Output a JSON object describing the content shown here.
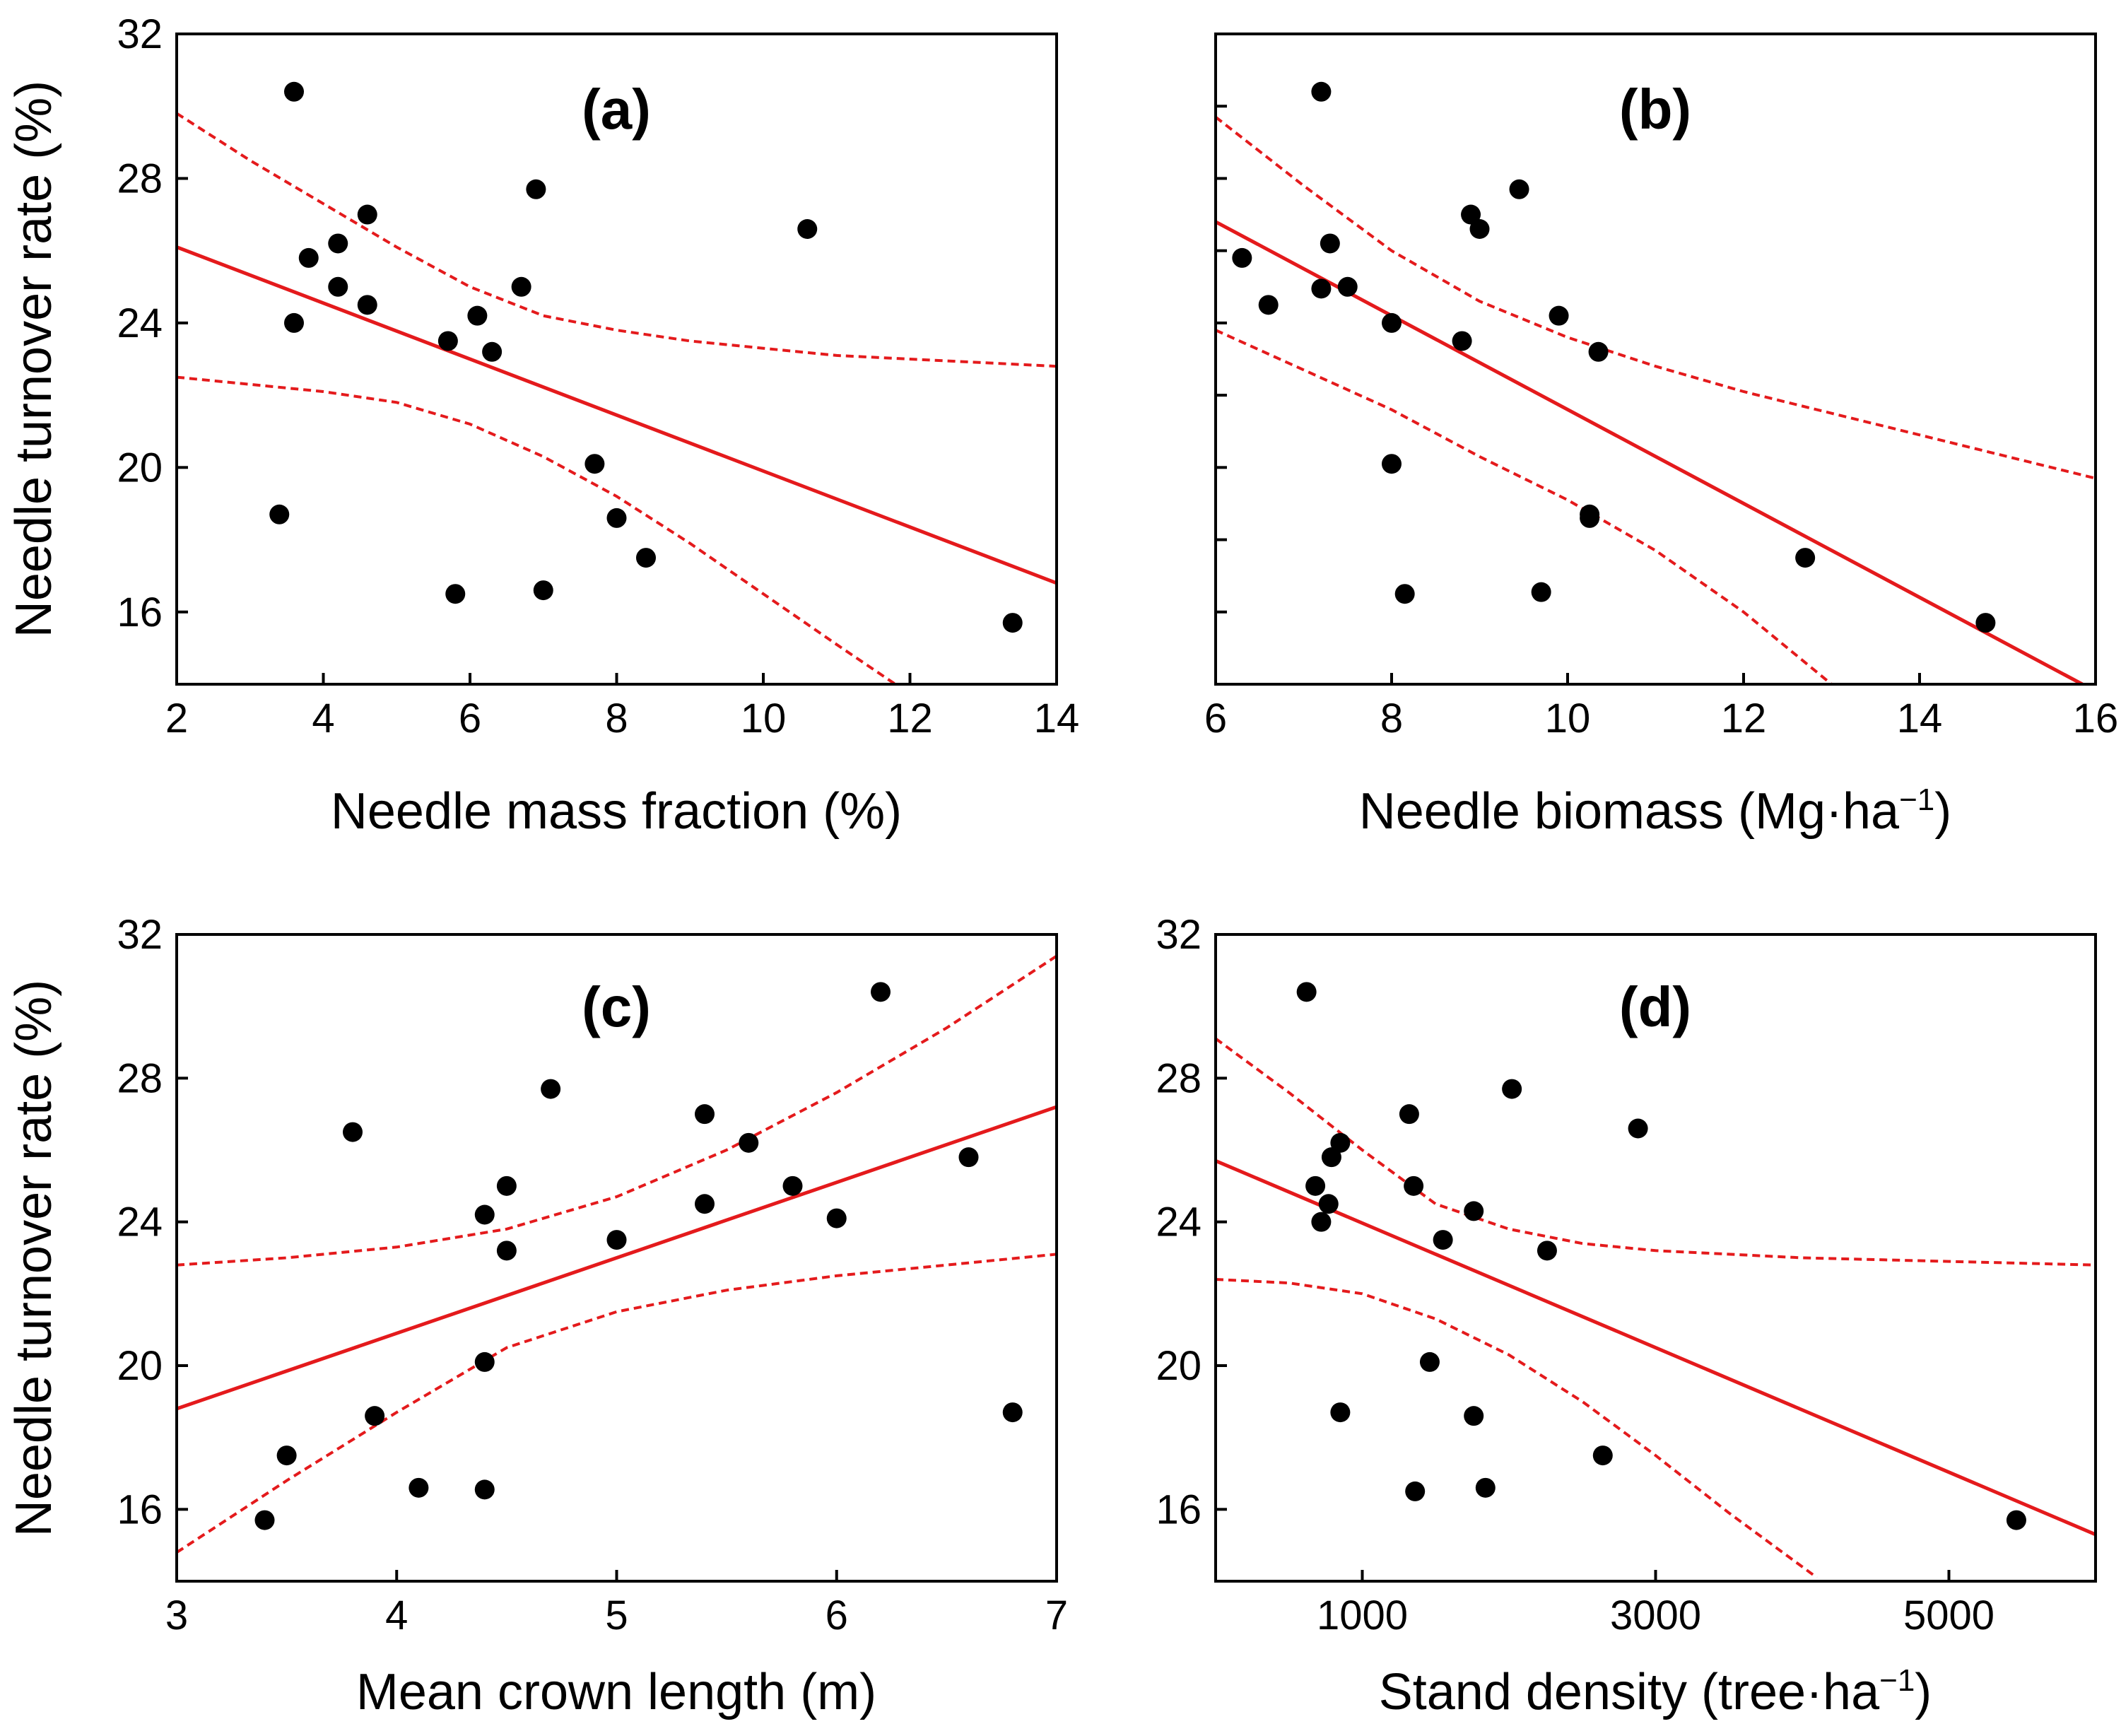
{
  "figure": {
    "accent_color": "#e41a1c",
    "point_color": "#000000"
  },
  "chart_data": [
    {
      "type": "scatter",
      "panel_label": "(a)",
      "xlabel": "Needle mass fraction (%)",
      "xlabel_sup": "",
      "xlabel_suffix": "",
      "ylabel": "Needle turnover rate (%)",
      "xlim": [
        2,
        14
      ],
      "ylim": [
        14,
        32
      ],
      "xticks": [
        2,
        4,
        6,
        8,
        10,
        12,
        14
      ],
      "xtick_labels": [
        "2",
        "4",
        "6",
        "8",
        "10",
        "12",
        "14"
      ],
      "yticks": [
        16,
        20,
        24,
        28,
        32
      ],
      "ytick_labels": [
        "16",
        "20",
        "24",
        "28",
        "32"
      ],
      "grid": false,
      "points": [
        {
          "x": 3.6,
          "y": 30.4
        },
        {
          "x": 6.9,
          "y": 27.7
        },
        {
          "x": 4.6,
          "y": 27.0
        },
        {
          "x": 10.6,
          "y": 26.6
        },
        {
          "x": 4.2,
          "y": 26.2
        },
        {
          "x": 3.8,
          "y": 25.8
        },
        {
          "x": 4.2,
          "y": 25.0
        },
        {
          "x": 6.7,
          "y": 25.0
        },
        {
          "x": 4.6,
          "y": 24.5
        },
        {
          "x": 6.1,
          "y": 24.2
        },
        {
          "x": 3.6,
          "y": 24.0
        },
        {
          "x": 5.7,
          "y": 23.5
        },
        {
          "x": 6.3,
          "y": 23.2
        },
        {
          "x": 7.7,
          "y": 20.1
        },
        {
          "x": 3.4,
          "y": 18.7
        },
        {
          "x": 8.0,
          "y": 18.6
        },
        {
          "x": 8.4,
          "y": 17.5
        },
        {
          "x": 5.8,
          "y": 16.5
        },
        {
          "x": 7.0,
          "y": 16.6
        },
        {
          "x": 13.4,
          "y": 15.7
        }
      ],
      "fit": {
        "x": [
          2,
          14
        ],
        "y": [
          26.1,
          16.8
        ]
      },
      "ci_upper": {
        "x": [
          2,
          3,
          4,
          5,
          6,
          7,
          8,
          9,
          10,
          11,
          12,
          13,
          14
        ],
        "y": [
          29.8,
          28.5,
          27.3,
          26.1,
          25.0,
          24.2,
          23.8,
          23.5,
          23.3,
          23.1,
          23.0,
          22.9,
          22.8
        ]
      },
      "ci_lower": {
        "x": [
          2,
          3,
          4,
          5,
          6,
          7,
          8,
          9,
          10,
          11,
          11.8
        ],
        "y": [
          22.5,
          22.3,
          22.1,
          21.8,
          21.2,
          20.3,
          19.2,
          17.9,
          16.5,
          15.1,
          14.0
        ]
      }
    },
    {
      "type": "scatter",
      "panel_label": "(b)",
      "xlabel": "Needle biomass (Mg·ha",
      "xlabel_sup": "−1",
      "xlabel_suffix": ")",
      "ylabel": "",
      "xlim": [
        6,
        16
      ],
      "ylim": [
        14,
        32
      ],
      "xticks": [
        6,
        8,
        10,
        12,
        14,
        16
      ],
      "xtick_labels": [
        "6",
        "8",
        "10",
        "12",
        "14",
        "16"
      ],
      "yticks": [
        16,
        18,
        20,
        22,
        24,
        26,
        28,
        30,
        32
      ],
      "ytick_labels": [],
      "grid": false,
      "points": [
        {
          "x": 7.2,
          "y": 30.4
        },
        {
          "x": 9.45,
          "y": 27.7
        },
        {
          "x": 8.9,
          "y": 27.0
        },
        {
          "x": 9.0,
          "y": 26.6
        },
        {
          "x": 7.3,
          "y": 26.2
        },
        {
          "x": 6.3,
          "y": 25.8
        },
        {
          "x": 7.2,
          "y": 24.95
        },
        {
          "x": 7.5,
          "y": 25.0
        },
        {
          "x": 6.6,
          "y": 24.5
        },
        {
          "x": 9.9,
          "y": 24.2
        },
        {
          "x": 8.0,
          "y": 24.0
        },
        {
          "x": 8.8,
          "y": 23.5
        },
        {
          "x": 10.35,
          "y": 23.2
        },
        {
          "x": 8.0,
          "y": 20.1
        },
        {
          "x": 10.25,
          "y": 18.7
        },
        {
          "x": 10.25,
          "y": 18.6
        },
        {
          "x": 12.7,
          "y": 17.5
        },
        {
          "x": 8.15,
          "y": 16.5
        },
        {
          "x": 9.7,
          "y": 16.55
        },
        {
          "x": 14.75,
          "y": 15.7
        }
      ],
      "fit": {
        "x": [
          6,
          15.85
        ],
        "y": [
          26.8,
          14.0
        ]
      },
      "ci_upper": {
        "x": [
          6,
          7,
          8,
          9,
          10,
          11,
          12,
          13,
          14,
          15,
          16
        ],
        "y": [
          29.7,
          27.8,
          26.0,
          24.6,
          23.6,
          22.8,
          22.1,
          21.5,
          20.9,
          20.3,
          19.7
        ]
      },
      "ci_lower": {
        "x": [
          6,
          7,
          8,
          9,
          10,
          11,
          12,
          13.0
        ],
        "y": [
          23.8,
          22.7,
          21.6,
          20.3,
          19.1,
          17.7,
          16.0,
          14.0
        ]
      }
    },
    {
      "type": "scatter",
      "panel_label": "(c)",
      "xlabel": "Mean crown length (m)",
      "xlabel_sup": "",
      "xlabel_suffix": "",
      "ylabel": "Needle turnover rate (%)",
      "xlim": [
        3,
        7
      ],
      "ylim": [
        14,
        32
      ],
      "xticks": [
        3,
        4,
        5,
        6,
        7
      ],
      "xtick_labels": [
        "3",
        "4",
        "5",
        "6",
        "7"
      ],
      "yticks": [
        16,
        20,
        24,
        28,
        32
      ],
      "ytick_labels": [
        "16",
        "20",
        "24",
        "28",
        "32"
      ],
      "grid": false,
      "points": [
        {
          "x": 6.2,
          "y": 30.4
        },
        {
          "x": 4.7,
          "y": 27.7
        },
        {
          "x": 5.4,
          "y": 27.0
        },
        {
          "x": 3.8,
          "y": 26.5
        },
        {
          "x": 5.6,
          "y": 26.2
        },
        {
          "x": 6.6,
          "y": 25.8
        },
        {
          "x": 4.5,
          "y": 25.0
        },
        {
          "x": 5.8,
          "y": 25.0
        },
        {
          "x": 5.4,
          "y": 24.5
        },
        {
          "x": 4.4,
          "y": 24.2
        },
        {
          "x": 6.0,
          "y": 24.1
        },
        {
          "x": 5.0,
          "y": 23.5
        },
        {
          "x": 4.5,
          "y": 23.2
        },
        {
          "x": 4.4,
          "y": 20.1
        },
        {
          "x": 3.9,
          "y": 18.6
        },
        {
          "x": 6.8,
          "y": 18.7
        },
        {
          "x": 3.5,
          "y": 17.5
        },
        {
          "x": 4.1,
          "y": 16.6
        },
        {
          "x": 4.4,
          "y": 16.55
        },
        {
          "x": 3.4,
          "y": 15.7
        }
      ],
      "fit": {
        "x": [
          3,
          7
        ],
        "y": [
          18.8,
          27.2
        ]
      },
      "ci_upper": {
        "x": [
          3,
          3.5,
          4,
          4.5,
          5,
          5.5,
          6,
          6.5,
          7
        ],
        "y": [
          22.8,
          23.0,
          23.3,
          23.8,
          24.7,
          26.0,
          27.6,
          29.4,
          31.4
        ]
      },
      "ci_lower": {
        "x": [
          3,
          3.5,
          4,
          4.5,
          5,
          5.5,
          6,
          6.5,
          7
        ],
        "y": [
          14.8,
          16.8,
          18.7,
          20.5,
          21.5,
          22.1,
          22.5,
          22.8,
          23.1
        ]
      }
    },
    {
      "type": "scatter",
      "panel_label": "(d)",
      "xlabel": "Stand density (tree·ha",
      "xlabel_sup": "−1",
      "xlabel_suffix": ")",
      "ylabel": "",
      "xlim": [
        0,
        6000
      ],
      "ylim": [
        14,
        32
      ],
      "xticks": [
        1000,
        3000,
        5000
      ],
      "xtick_labels": [
        "1000",
        "3000",
        "5000"
      ],
      "yticks": [
        16,
        20,
        24,
        28,
        32
      ],
      "ytick_labels": [
        "16",
        "20",
        "24",
        "28",
        "32"
      ],
      "grid": false,
      "points": [
        {
          "x": 620,
          "y": 30.4
        },
        {
          "x": 2020,
          "y": 27.7
        },
        {
          "x": 1320,
          "y": 27.0
        },
        {
          "x": 2880,
          "y": 26.6
        },
        {
          "x": 850,
          "y": 26.2
        },
        {
          "x": 790,
          "y": 25.8
        },
        {
          "x": 1350,
          "y": 25.0
        },
        {
          "x": 680,
          "y": 25.0
        },
        {
          "x": 770,
          "y": 24.5
        },
        {
          "x": 1760,
          "y": 24.3
        },
        {
          "x": 720,
          "y": 24.0
        },
        {
          "x": 1550,
          "y": 23.5
        },
        {
          "x": 2260,
          "y": 23.2
        },
        {
          "x": 1460,
          "y": 20.1
        },
        {
          "x": 850,
          "y": 18.7
        },
        {
          "x": 1760,
          "y": 18.6
        },
        {
          "x": 2640,
          "y": 17.5
        },
        {
          "x": 1360,
          "y": 16.5
        },
        {
          "x": 1840,
          "y": 16.6
        },
        {
          "x": 5460,
          "y": 15.7
        }
      ],
      "fit": {
        "x": [
          0,
          6000
        ],
        "y": [
          25.7,
          15.3
        ]
      },
      "ci_upper": {
        "x": [
          0,
          500,
          1000,
          1500,
          2000,
          2500,
          3000,
          4000,
          5000,
          6000
        ],
        "y": [
          29.1,
          27.6,
          26.0,
          24.5,
          23.8,
          23.4,
          23.2,
          23.0,
          22.9,
          22.8
        ]
      },
      "ci_lower": {
        "x": [
          0,
          500,
          1000,
          1500,
          2000,
          2500,
          3000,
          3500,
          4100
        ],
        "y": [
          22.4,
          22.3,
          22.0,
          21.3,
          20.3,
          19.0,
          17.5,
          15.9,
          14.1
        ]
      }
    }
  ]
}
